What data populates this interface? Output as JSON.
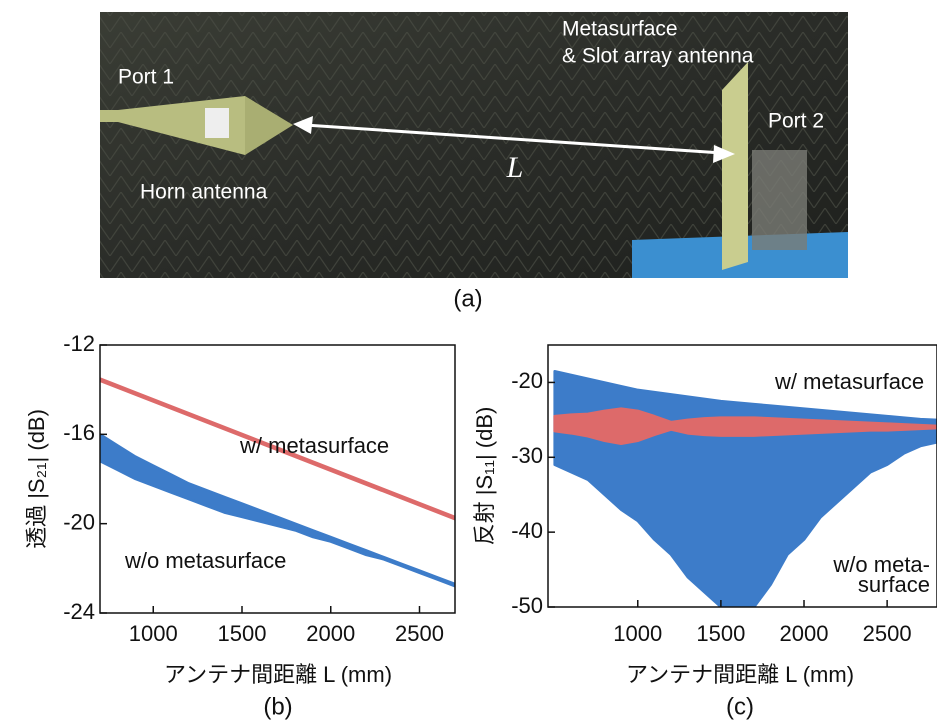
{
  "photo": {
    "labels": [
      "Port 1",
      "Horn antenna",
      "Metasurface",
      "& Slot array antenna",
      "Port 2",
      "L"
    ],
    "panel_label": "(a)"
  },
  "chart_data": [
    {
      "type": "band",
      "panel_label": "(b)",
      "xlabel": "アンテナ間距離 L (mm)",
      "ylabel": "透過 |S₂₁| (dB)",
      "xlim": [
        700,
        2700
      ],
      "xticks": [
        1000,
        1500,
        2000,
        2500
      ],
      "ylim": [
        -24,
        -12
      ],
      "yticks": [
        -24,
        -20,
        -16,
        -12
      ],
      "series": [
        {
          "name": "w/o metasurface",
          "color": "#3d7cc9",
          "x": [
            700,
            800,
            900,
            1000,
            1100,
            1200,
            1300,
            1400,
            1500,
            1600,
            1700,
            1800,
            1900,
            2000,
            2100,
            2200,
            2300,
            2400,
            2500,
            2600,
            2700
          ],
          "values": [
            -16.0,
            -16.5,
            -17.0,
            -17.4,
            -17.8,
            -18.2,
            -18.5,
            -18.8,
            -19.1,
            -19.4,
            -19.7,
            -20.0,
            -20.3,
            -20.6,
            -20.9,
            -21.2,
            -21.5,
            -21.8,
            -22.1,
            -22.4,
            -22.7
          ],
          "low": [
            -17.2,
            -17.6,
            -18.0,
            -18.3,
            -18.6,
            -18.9,
            -19.2,
            -19.5,
            -19.7,
            -19.9,
            -20.1,
            -20.3,
            -20.6,
            -20.8,
            -21.1,
            -21.4,
            -21.6,
            -21.9,
            -22.2,
            -22.5,
            -22.8
          ]
        },
        {
          "name": "w/ metasurface",
          "color": "#dd6a6a",
          "x": [
            700,
            2700
          ],
          "values": [
            -13.5,
            -19.7
          ],
          "low": [
            -13.6,
            -19.8
          ]
        }
      ]
    },
    {
      "type": "band",
      "panel_label": "(c)",
      "xlabel": "アンテナ間距離 L (mm)",
      "ylabel": "反射 |S₁₁| (dB)",
      "xlim": [
        460,
        2800
      ],
      "xticks": [
        1000,
        1500,
        2000,
        2500
      ],
      "ylim": [
        -50,
        -15
      ],
      "yticks": [
        -50,
        -40,
        -30,
        -20
      ],
      "series": [
        {
          "name_lines": [
            "w/o meta-",
            "surface"
          ],
          "color": "#3d7cc9",
          "x": [
            500,
            600,
            700,
            800,
            900,
            1000,
            1100,
            1200,
            1300,
            1400,
            1500,
            1600,
            1700,
            1800,
            1900,
            2000,
            2100,
            2200,
            2300,
            2400,
            2500,
            2600,
            2700,
            2800
          ],
          "values": [
            -18.5,
            -19,
            -19.5,
            -20,
            -20.5,
            -21,
            -21.3,
            -21.6,
            -21.9,
            -22.2,
            -22.5,
            -22.7,
            -22.9,
            -23.1,
            -23.3,
            -23.5,
            -23.7,
            -23.9,
            -24.1,
            -24.3,
            -24.5,
            -24.7,
            -24.9,
            -25
          ],
          "low": [
            -31,
            -32,
            -33,
            -35,
            -37,
            -38.5,
            -41,
            -43,
            -46,
            -48,
            -50,
            -50,
            -50,
            -47,
            -43,
            -41,
            -38,
            -36,
            -34,
            -32,
            -31,
            -29.5,
            -28.5,
            -28
          ]
        },
        {
          "name": "w/ metasurface",
          "color": "#dd6a6a",
          "x": [
            500,
            600,
            700,
            800,
            900,
            1000,
            1100,
            1200,
            1300,
            1400,
            1500,
            1600,
            1700,
            1800,
            1900,
            2000,
            2100,
            2200,
            2300,
            2400,
            2500,
            2600,
            2700,
            2800
          ],
          "values": [
            -24.5,
            -24.3,
            -24.2,
            -23.8,
            -23.5,
            -23.8,
            -24.5,
            -25.3,
            -25,
            -24.8,
            -24.7,
            -24.7,
            -24.7,
            -24.8,
            -24.9,
            -25,
            -25.1,
            -25.2,
            -25.3,
            -25.4,
            -25.5,
            -25.6,
            -25.7,
            -25.8
          ],
          "low": [
            -26.5,
            -26.8,
            -27.2,
            -27.8,
            -28.2,
            -27.8,
            -27,
            -26.3,
            -26.8,
            -27,
            -27.1,
            -27.1,
            -27.1,
            -27,
            -26.9,
            -26.8,
            -26.7,
            -26.6,
            -26.5,
            -26.4,
            -26.4,
            -26.3,
            -26.2,
            -26.1
          ]
        }
      ]
    }
  ]
}
